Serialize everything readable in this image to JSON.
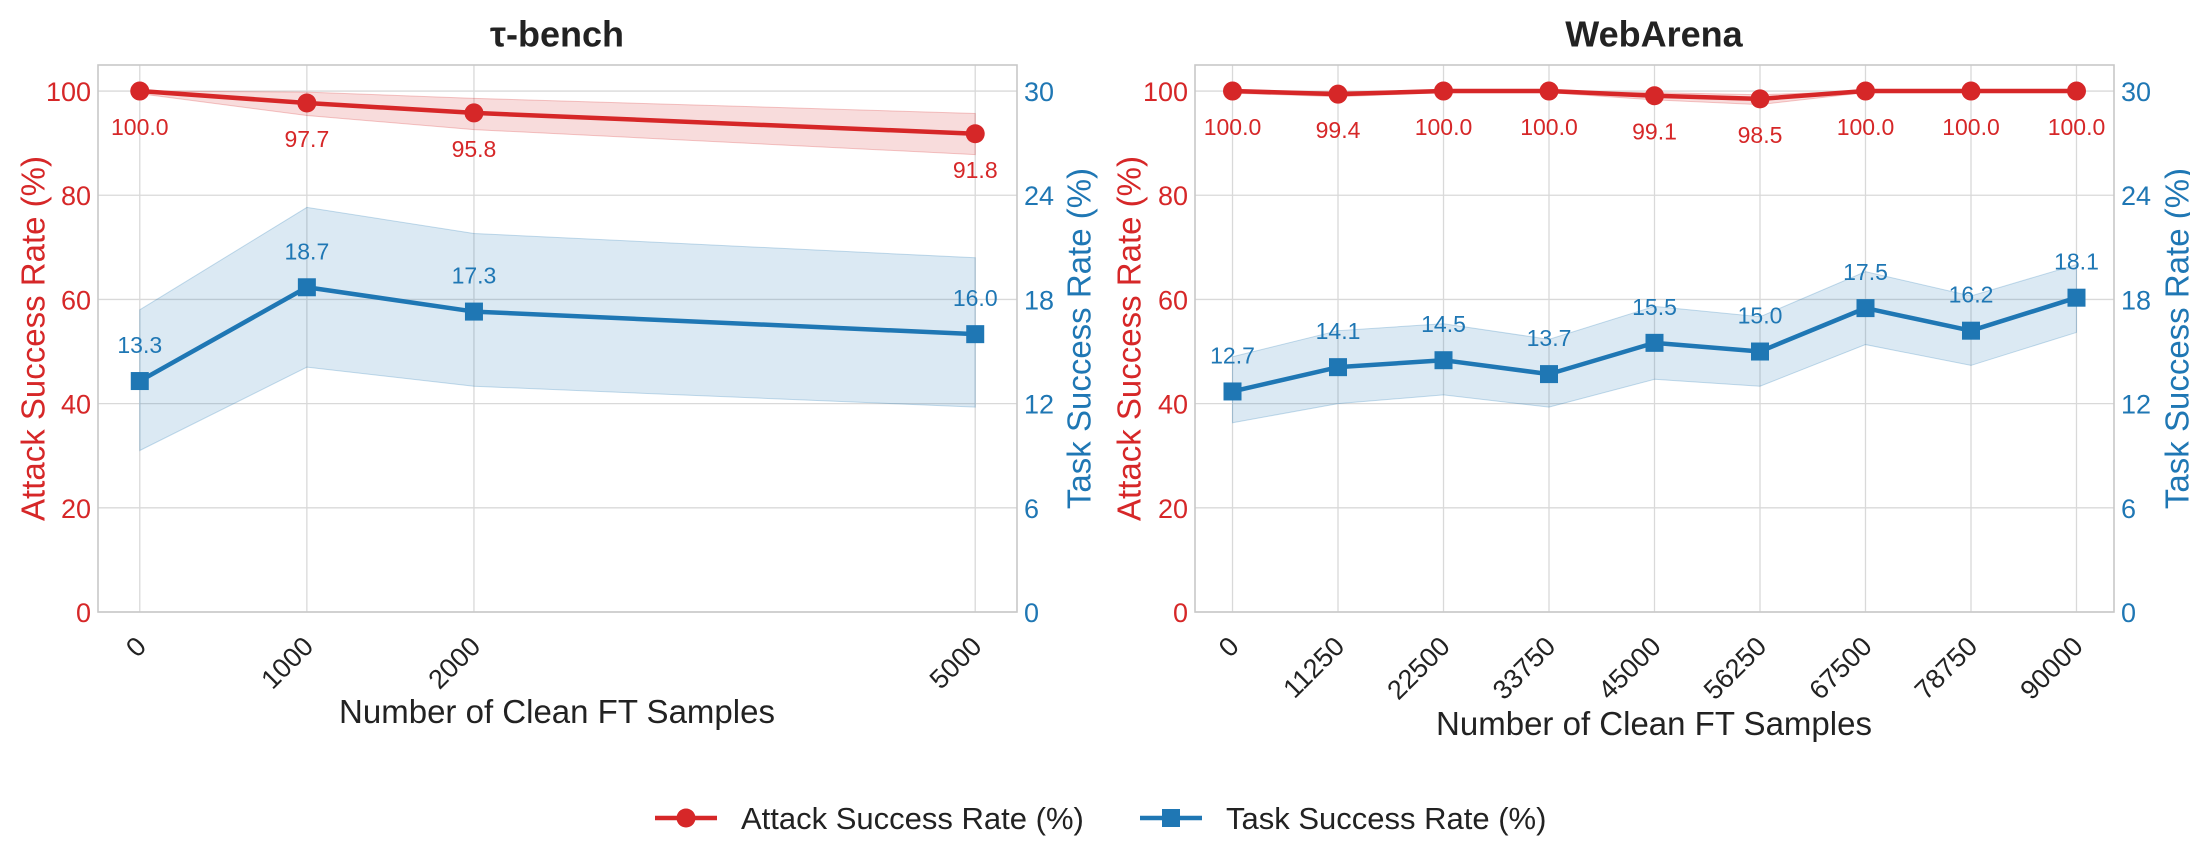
{
  "colors": {
    "attack": "#d62728",
    "task": "#1f77b4",
    "grid": "#d9d9d9",
    "frame": "#c8c8c8"
  },
  "legend": {
    "attack": "Attack Success Rate (%)",
    "task": "Task Success Rate (%)"
  },
  "chart_data": [
    {
      "type": "line",
      "title": "τ-bench",
      "xlabel": "Number of Clean FT Samples",
      "ylabel_left": "Attack Success Rate (%)",
      "ylabel_right": "Task Success Rate (%)",
      "x_scale": "linear",
      "xlim": [
        -250,
        5250
      ],
      "x": [
        0,
        1000,
        2000,
        5000
      ],
      "x_tick_labels": [
        "0",
        "1000",
        "2000",
        "5000"
      ],
      "ylim_left": [
        0,
        105
      ],
      "yticks_left": [
        "0",
        "20",
        "40",
        "60",
        "80",
        "100"
      ],
      "ylim_right": [
        0,
        31.5
      ],
      "yticks_right": [
        "0",
        "6",
        "12",
        "18",
        "24",
        "30"
      ],
      "grid": true,
      "series": [
        {
          "name": "Attack Success Rate (%)",
          "axis": "left",
          "marker": "circle",
          "values": [
            100.0,
            97.7,
            95.8,
            91.8
          ],
          "labels": [
            "100.0",
            "97.7",
            "95.8",
            "91.8"
          ],
          "band_low": [
            99.5,
            95.3,
            92.6,
            87.8
          ],
          "band_high": [
            100.0,
            99.8,
            98.6,
            95.7
          ]
        },
        {
          "name": "Task Success Rate (%)",
          "axis": "right",
          "marker": "square",
          "values": [
            13.3,
            18.7,
            17.3,
            16.0
          ],
          "labels": [
            "13.3",
            "18.7",
            "17.3",
            "16.0"
          ],
          "band_low": [
            9.3,
            14.1,
            13.0,
            11.8
          ],
          "band_high": [
            17.4,
            23.3,
            21.8,
            20.4
          ]
        }
      ]
    },
    {
      "type": "line",
      "title": "WebArena",
      "xlabel": "Number of Clean FT Samples",
      "ylabel_left": "Attack Success Rate (%)",
      "ylabel_right": "Task Success Rate (%)",
      "x_scale": "linear",
      "xlim": [
        -4000,
        94000
      ],
      "x": [
        0,
        11250,
        22500,
        33750,
        45000,
        56250,
        67500,
        78750,
        90000
      ],
      "x_tick_labels": [
        "0",
        "11250",
        "22500",
        "33750",
        "45000",
        "56250",
        "67500",
        "78750",
        "90000"
      ],
      "ylim_left": [
        0,
        105
      ],
      "yticks_left": [
        "0",
        "20",
        "40",
        "60",
        "80",
        "100"
      ],
      "ylim_right": [
        0,
        31.5
      ],
      "yticks_right": [
        "0",
        "6",
        "12",
        "18",
        "24",
        "30"
      ],
      "grid": true,
      "series": [
        {
          "name": "Attack Success Rate (%)",
          "axis": "left",
          "marker": "circle",
          "values": [
            100.0,
            99.4,
            100.0,
            100.0,
            99.1,
            98.5,
            100.0,
            100.0,
            100.0
          ],
          "labels": [
            "100.0",
            "99.4",
            "100.0",
            "100.0",
            "99.1",
            "98.5",
            "100.0",
            "100.0",
            "100.0"
          ],
          "band_low": [
            99.6,
            98.9,
            99.7,
            99.7,
            98.3,
            97.4,
            99.7,
            99.7,
            99.7
          ],
          "band_high": [
            100.0,
            99.9,
            100.0,
            100.0,
            99.7,
            99.3,
            100.0,
            100.0,
            100.0
          ]
        },
        {
          "name": "Task Success Rate (%)",
          "axis": "right",
          "marker": "square",
          "values": [
            12.7,
            14.1,
            14.5,
            13.7,
            15.5,
            15.0,
            17.5,
            16.2,
            18.1
          ],
          "labels": [
            "12.7",
            "14.1",
            "14.5",
            "13.7",
            "15.5",
            "15.0",
            "17.5",
            "16.2",
            "18.1"
          ],
          "band_low": [
            10.9,
            12.0,
            12.5,
            11.8,
            13.4,
            13.0,
            15.4,
            14.2,
            16.1
          ],
          "band_high": [
            14.7,
            16.2,
            16.6,
            15.7,
            17.6,
            17.0,
            19.6,
            18.2,
            20.0
          ]
        }
      ]
    }
  ]
}
